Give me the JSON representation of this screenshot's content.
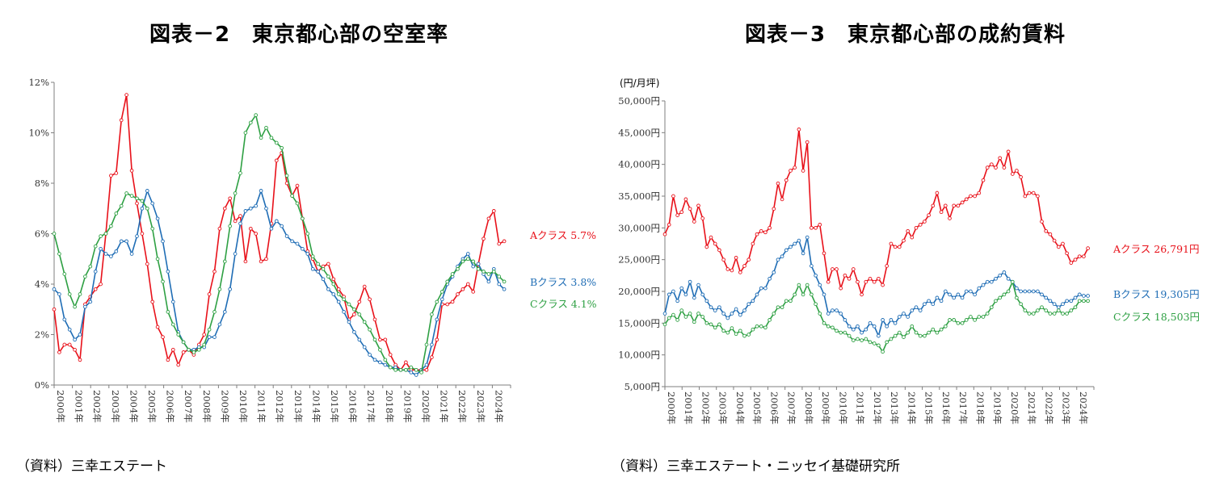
{
  "chart_data": [
    {
      "type": "line",
      "title": "図表－2　東京都心部の空室率",
      "source": "（資料）三幸エステート",
      "ylim": [
        0,
        12
      ],
      "y_ticks": [
        "0%",
        "2%",
        "4%",
        "6%",
        "8%",
        "10%",
        "12%"
      ],
      "x_ticks": [
        "2000年",
        "2001年",
        "2002年",
        "2003年",
        "2004年",
        "2005年",
        "2006年",
        "2007年",
        "2008年",
        "2009年",
        "2010年",
        "2011年",
        "2012年",
        "2013年",
        "2014年",
        "2015年",
        "2016年",
        "2017年",
        "2018年",
        "2019年",
        "2020年",
        "2021年",
        "2022年",
        "2023年",
        "2024年"
      ],
      "x_start": 2000,
      "x_end": 2025,
      "grid": false,
      "series": [
        {
          "name": "Aクラス",
          "label": "Aクラス 5.7%",
          "color": "#e8111a",
          "values": [
            3.0,
            1.3,
            1.6,
            1.6,
            1.4,
            1.0,
            3.2,
            3.5,
            3.8,
            4.0,
            6.0,
            8.3,
            8.4,
            10.5,
            11.5,
            8.5,
            7.2,
            6.0,
            4.8,
            3.3,
            2.3,
            1.9,
            1.0,
            1.4,
            0.8,
            1.3,
            1.4,
            1.2,
            1.6,
            2.0,
            3.6,
            4.5,
            6.2,
            7.0,
            7.4,
            6.5,
            6.7,
            4.9,
            6.2,
            6.0,
            4.9,
            5.0,
            6.4,
            8.9,
            9.2,
            8.0,
            7.5,
            7.9,
            6.6,
            5.3,
            5.0,
            4.5,
            4.7,
            4.8,
            4.2,
            3.8,
            3.5,
            2.6,
            2.8,
            3.3,
            3.9,
            3.4,
            2.6,
            1.8,
            1.8,
            1.2,
            0.8,
            0.6,
            0.9,
            0.6,
            0.6,
            0.6,
            0.6,
            1.1,
            1.8,
            3.2,
            3.2,
            3.3,
            3.6,
            3.8,
            4.0,
            3.7,
            4.8,
            5.8,
            6.6,
            6.9,
            5.6,
            5.7
          ]
        },
        {
          "name": "Bクラス",
          "label": "Bクラス 3.8%",
          "color": "#1f6db5",
          "values": [
            3.8,
            3.6,
            2.6,
            2.2,
            1.8,
            2.0,
            3.1,
            3.3,
            4.5,
            5.4,
            5.2,
            5.1,
            5.3,
            5.7,
            5.7,
            5.2,
            5.9,
            7.0,
            7.7,
            7.2,
            6.6,
            5.7,
            4.5,
            3.3,
            2.1,
            1.7,
            1.4,
            1.4,
            1.5,
            1.5,
            1.9,
            1.9,
            2.4,
            2.9,
            3.8,
            5.2,
            6.4,
            6.9,
            7.0,
            7.1,
            7.7,
            7.0,
            6.2,
            6.5,
            6.3,
            5.9,
            5.7,
            5.6,
            5.4,
            5.2,
            4.6,
            4.5,
            4.2,
            3.8,
            3.6,
            3.3,
            2.9,
            2.5,
            2.1,
            1.8,
            1.5,
            1.2,
            1.0,
            0.9,
            0.8,
            0.7,
            0.7,
            0.6,
            0.6,
            0.5,
            0.4,
            0.6,
            0.8,
            1.6,
            2.6,
            3.4,
            4.0,
            4.3,
            4.7,
            5.0,
            5.2,
            4.7,
            4.8,
            4.4,
            4.1,
            4.6,
            4.0,
            3.8
          ]
        },
        {
          "name": "Cクラス",
          "label": "Cクラス 4.1%",
          "color": "#2ea043",
          "values": [
            6.0,
            5.2,
            4.4,
            3.6,
            3.1,
            3.6,
            4.3,
            4.7,
            5.5,
            5.9,
            6.0,
            6.3,
            6.8,
            7.1,
            7.6,
            7.5,
            7.4,
            7.3,
            7.0,
            6.2,
            5.0,
            4.1,
            2.9,
            2.4,
            2.0,
            1.7,
            1.4,
            1.3,
            1.4,
            1.6,
            2.2,
            2.9,
            3.8,
            4.9,
            6.3,
            7.6,
            8.4,
            10.0,
            10.4,
            10.7,
            9.8,
            10.2,
            9.8,
            9.6,
            9.4,
            8.3,
            7.5,
            7.2,
            6.6,
            6.0,
            5.1,
            4.8,
            4.6,
            4.3,
            4.0,
            3.6,
            3.4,
            3.2,
            3.0,
            2.8,
            2.5,
            2.2,
            1.8,
            1.4,
            1.0,
            0.7,
            0.6,
            0.6,
            0.6,
            0.7,
            0.6,
            0.5,
            1.6,
            2.8,
            3.3,
            3.7,
            4.1,
            4.4,
            4.6,
            4.9,
            5.0,
            4.9,
            4.6,
            4.5,
            4.4,
            4.5,
            4.3,
            4.1
          ]
        }
      ]
    },
    {
      "type": "line",
      "title": "図表－3　東京都心部の成約賃料",
      "source": "（資料）三幸エステート・ニッセイ基礎研究所",
      "y_unit": "(円/月坪)",
      "ylim": [
        5000,
        50000
      ],
      "y_ticks": [
        "5,000円",
        "10,000円",
        "15,000円",
        "20,000円",
        "25,000円",
        "30,000円",
        "35,000円",
        "40,000円",
        "45,000円",
        "50,000円"
      ],
      "x_ticks": [
        "2000年",
        "2001年",
        "2002年",
        "2003年",
        "2004年",
        "2005年",
        "2006年",
        "2007年",
        "2008年",
        "2009年",
        "2010年",
        "2011年",
        "2012年",
        "2013年",
        "2014年",
        "2015年",
        "2016年",
        "2017年",
        "2018年",
        "2019年",
        "2020年",
        "2021年",
        "2022年",
        "2023年",
        "2024年"
      ],
      "x_start": 2000,
      "x_end": 2025,
      "grid": false,
      "series": [
        {
          "name": "Aクラス",
          "label": "Aクラス 26,791円",
          "color": "#e8111a",
          "values": [
            29000,
            30500,
            35000,
            32000,
            32500,
            34500,
            33000,
            31000,
            33500,
            31500,
            27000,
            28500,
            27500,
            26500,
            25000,
            23500,
            23300,
            25300,
            23000,
            24000,
            25000,
            27500,
            29000,
            29500,
            29300,
            30000,
            33000,
            37000,
            34500,
            37500,
            39000,
            39500,
            45500,
            39000,
            43500,
            30000,
            30000,
            30500,
            26000,
            21500,
            23500,
            23500,
            20500,
            22500,
            22000,
            23500,
            21500,
            19500,
            21500,
            22000,
            21500,
            22000,
            21000,
            24000,
            27500,
            27000,
            27000,
            28000,
            29500,
            28500,
            30000,
            30500,
            31000,
            32000,
            33500,
            35500,
            32500,
            33500,
            31500,
            33500,
            33500,
            34000,
            34500,
            35000,
            35000,
            35500,
            37500,
            39500,
            40000,
            39500,
            41000,
            39500,
            42000,
            38500,
            39000,
            38000,
            35000,
            35500,
            35500,
            35000,
            31000,
            29500,
            29000,
            28000,
            27000,
            27500,
            26000,
            24500,
            25000,
            25500,
            25500,
            26791
          ]
        },
        {
          "name": "Bクラス",
          "label": "Bクラス 19,305円",
          "color": "#1f6db5",
          "values": [
            16500,
            19500,
            20000,
            18500,
            20500,
            19500,
            21500,
            19000,
            21000,
            19500,
            18500,
            17500,
            17000,
            17500,
            16500,
            15800,
            16500,
            17200,
            16300,
            17000,
            18000,
            18500,
            19500,
            20500,
            20500,
            22000,
            23000,
            25000,
            25500,
            26500,
            27000,
            27500,
            28000,
            26000,
            28500,
            24000,
            22500,
            21000,
            19500,
            16500,
            17000,
            17000,
            16500,
            15500,
            14500,
            14000,
            14500,
            13500,
            14000,
            15000,
            14500,
            13000,
            15500,
            14500,
            15500,
            15000,
            16000,
            16500,
            16000,
            17000,
            17500,
            17000,
            18000,
            18500,
            18000,
            19000,
            18500,
            20000,
            19500,
            19000,
            19500,
            19000,
            20000,
            20000,
            19500,
            20500,
            21000,
            21500,
            21500,
            22000,
            22500,
            23000,
            22000,
            21500,
            20500,
            20000,
            20000,
            20000,
            20000,
            20000,
            19500,
            19000,
            18500,
            18000,
            17500,
            18000,
            18500,
            18500,
            19000,
            19500,
            19305,
            19305
          ]
        },
        {
          "name": "Cクラス",
          "label": "Cクラス 18,503円",
          "color": "#2ea043",
          "values": [
            14800,
            15800,
            16300,
            15500,
            17000,
            16000,
            16500,
            15200,
            16500,
            16000,
            15000,
            14800,
            14300,
            14800,
            13800,
            13500,
            14200,
            13300,
            13800,
            13000,
            13200,
            14000,
            14500,
            14500,
            14300,
            15500,
            16500,
            17500,
            17500,
            18500,
            18500,
            19500,
            21000,
            19500,
            21000,
            19500,
            18000,
            16500,
            15000,
            14500,
            14300,
            13800,
            13500,
            13500,
            13000,
            12300,
            12500,
            12300,
            12500,
            12000,
            11800,
            11500,
            10500,
            12000,
            12500,
            13000,
            13500,
            12800,
            13500,
            14500,
            13500,
            13000,
            13000,
            13500,
            14000,
            13500,
            14000,
            14500,
            15500,
            15500,
            15000,
            15000,
            15500,
            16000,
            15500,
            16000,
            16000,
            16500,
            17500,
            18500,
            19000,
            19500,
            20000,
            21500,
            19000,
            18000,
            17000,
            16500,
            16500,
            17000,
            17500,
            17000,
            16500,
            16500,
            17000,
            16500,
            16500,
            17000,
            17500,
            18500,
            18503,
            18503
          ]
        }
      ]
    }
  ]
}
